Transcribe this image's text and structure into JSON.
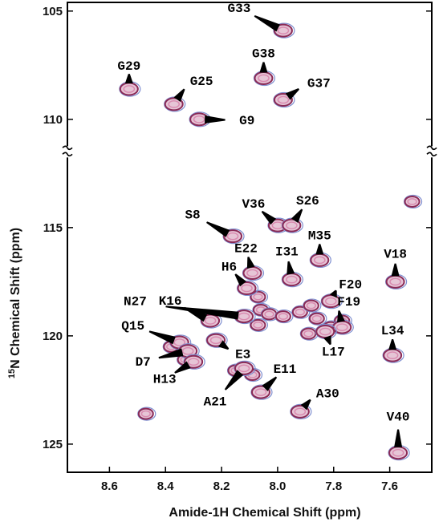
{
  "chart_data": {
    "type": "scatter",
    "title": "",
    "xlabel": "Amide-1H Chemical Shift (ppm)",
    "ylabel_prefix": "15",
    "ylabel_rest": "N Chemical Shift (ppm)",
    "x_reversed": true,
    "xlim": [
      8.75,
      7.45
    ],
    "ylim": [
      126.3,
      104.6
    ],
    "axis_break_at": 111.5,
    "xticks": [
      "8.6",
      "8.4",
      "8.2",
      "8.0",
      "7.8",
      "7.6"
    ],
    "xtick_values": [
      8.6,
      8.4,
      8.2,
      8.0,
      7.8,
      7.6
    ],
    "yticks": [
      "105",
      "110",
      "115",
      "120",
      "125"
    ],
    "ytick_values": [
      105,
      110,
      115,
      120,
      125
    ],
    "colors": {
      "peak_outer": "#8a2a56",
      "peak_inner": "#d98bb0",
      "peak_halo": "#7f8fd0",
      "text": "#000000"
    },
    "labeled_peaks": [
      {
        "label": "G33",
        "x": 7.98,
        "y": 105.9
      },
      {
        "label": "G38",
        "x": 8.05,
        "y": 108.1
      },
      {
        "label": "G29",
        "x": 8.53,
        "y": 108.6
      },
      {
        "label": "G25",
        "x": 8.37,
        "y": 109.3
      },
      {
        "label": "G37",
        "x": 7.98,
        "y": 109.1
      },
      {
        "label": "G9",
        "x": 8.28,
        "y": 110.0
      },
      {
        "label": "S8",
        "x": 8.16,
        "y": 115.4
      },
      {
        "label": "V36",
        "x": 8.0,
        "y": 114.9
      },
      {
        "label": "S26",
        "x": 7.95,
        "y": 114.9
      },
      {
        "label": "E22",
        "x": 8.09,
        "y": 117.1
      },
      {
        "label": "I31",
        "x": 7.95,
        "y": 117.4
      },
      {
        "label": "M35",
        "x": 7.85,
        "y": 116.5
      },
      {
        "label": "V18",
        "x": 7.58,
        "y": 117.5
      },
      {
        "label": "H6",
        "x": 8.11,
        "y": 117.8
      },
      {
        "label": "N27",
        "x": 8.12,
        "y": 119.1
      },
      {
        "label": "F20",
        "x": 7.81,
        "y": 118.4
      },
      {
        "label": "K16",
        "x": 8.24,
        "y": 119.3
      },
      {
        "label": "F19",
        "x": 7.77,
        "y": 119.6
      },
      {
        "label": "Q15",
        "x": 8.35,
        "y": 120.3
      },
      {
        "label": "L17",
        "x": 7.83,
        "y": 119.8
      },
      {
        "label": "D7",
        "x": 8.32,
        "y": 120.7
      },
      {
        "label": "E3",
        "x": 8.22,
        "y": 120.2
      },
      {
        "label": "L34",
        "x": 7.59,
        "y": 120.9
      },
      {
        "label": "H13",
        "x": 8.3,
        "y": 121.2
      },
      {
        "label": "E11",
        "x": 8.06,
        "y": 122.6
      },
      {
        "label": "A21",
        "x": 8.12,
        "y": 121.5
      },
      {
        "label": "A30",
        "x": 7.92,
        "y": 123.5
      },
      {
        "label": "V40",
        "x": 7.57,
        "y": 125.4
      }
    ],
    "unlabeled_peaks": [
      {
        "x": 7.52,
        "y": 113.8
      },
      {
        "x": 8.07,
        "y": 118.2
      },
      {
        "x": 8.06,
        "y": 118.8
      },
      {
        "x": 8.03,
        "y": 119.0
      },
      {
        "x": 7.98,
        "y": 119.1
      },
      {
        "x": 7.92,
        "y": 118.9
      },
      {
        "x": 7.88,
        "y": 118.6
      },
      {
        "x": 7.86,
        "y": 119.2
      },
      {
        "x": 7.89,
        "y": 119.9
      },
      {
        "x": 7.81,
        "y": 119.6
      },
      {
        "x": 7.77,
        "y": 119.3
      },
      {
        "x": 8.38,
        "y": 120.5
      },
      {
        "x": 8.33,
        "y": 121.1
      },
      {
        "x": 8.15,
        "y": 121.6
      },
      {
        "x": 8.09,
        "y": 121.8
      },
      {
        "x": 8.47,
        "y": 123.6
      },
      {
        "x": 8.07,
        "y": 119.5
      }
    ]
  }
}
